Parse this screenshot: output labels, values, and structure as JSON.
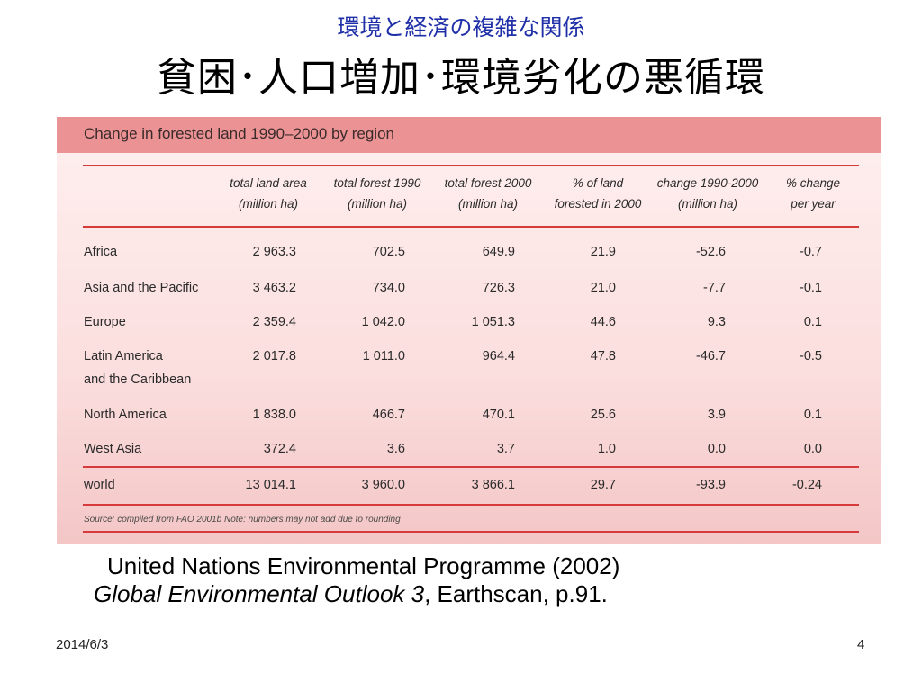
{
  "slide": {
    "subtitle": "環境と経済の複雑な関係",
    "title": "貧困･人口増加･環境劣化の悪循環",
    "date": "2014/6/3",
    "page_number": "4"
  },
  "figure": {
    "header_title": "Change in forested land 1990–2000 by region",
    "columns": [
      {
        "line1": "total land area",
        "line2": "(million ha)"
      },
      {
        "line1": "total forest 1990",
        "line2": "(million ha)"
      },
      {
        "line1": "total forest 2000",
        "line2": "(million ha)"
      },
      {
        "line1": "% of land",
        "line2": "forested in 2000"
      },
      {
        "line1": "change 1990-2000",
        "line2": "(million ha)"
      },
      {
        "line1": "% change",
        "line2": "per year"
      }
    ],
    "rows": [
      {
        "region": "Africa",
        "region2": "",
        "values": [
          "2 963.3",
          "702.5",
          "649.9",
          "21.9",
          "-52.6",
          "-0.7"
        ]
      },
      {
        "region": "Asia and the Pacific",
        "region2": "",
        "values": [
          "3 463.2",
          "734.0",
          "726.3",
          "21.0",
          "-7.7",
          "-0.1"
        ]
      },
      {
        "region": "Europe",
        "region2": "",
        "values": [
          "2 359.4",
          "1 042.0",
          "1 051.3",
          "44.6",
          "9.3",
          "0.1"
        ]
      },
      {
        "region": "Latin America",
        "region2": "and the Caribbean",
        "values": [
          "2 017.8",
          "1 011.0",
          "964.4",
          "47.8",
          "-46.7",
          "-0.5"
        ]
      },
      {
        "region": "North America",
        "region2": "",
        "values": [
          "1 838.0",
          "466.7",
          "470.1",
          "25.6",
          "3.9",
          "0.1"
        ]
      },
      {
        "region": "West Asia",
        "region2": "",
        "values": [
          "372.4",
          "3.6",
          "3.7",
          "1.0",
          "0.0",
          "0.0"
        ]
      }
    ],
    "total": {
      "region": "world",
      "values": [
        "13 014.1",
        "3 960.0",
        "3 866.1",
        "29.7",
        "-93.9",
        "-0.24"
      ]
    },
    "source_note": "Source: compiled from FAO 2001b  Note: numbers may not add due to rounding"
  },
  "citation": {
    "line1": "United Nations Environmental Programme (2002)",
    "book_title": "Global Environmental Outlook 3",
    "line2_rest": ", Earthscan, p.91."
  }
}
